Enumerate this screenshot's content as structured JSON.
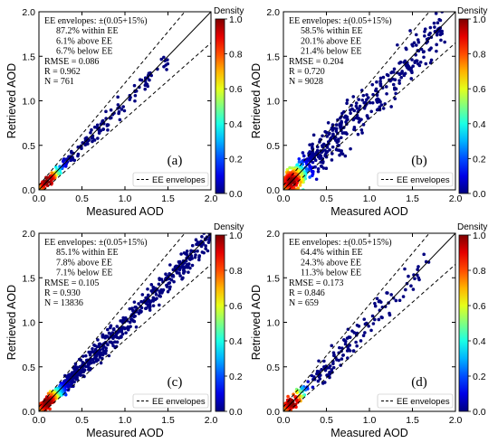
{
  "chart_data": [
    {
      "type": "scatter",
      "panel_label": "(a)",
      "xlabel": "Measured AOD",
      "ylabel": "Retrieved AOD",
      "xlim": [
        0,
        2.0
      ],
      "ylim": [
        0,
        2.0
      ],
      "xticks": [
        "0.0",
        "0.5",
        "1.0",
        "1.5",
        "2.0"
      ],
      "yticks": [
        "0.0",
        "0.5",
        "1.0",
        "1.5",
        "2.0"
      ],
      "stats": [
        "EE envelopes: ±(0.05+15%)",
        "87.2% within EE",
        "6.1% above EE",
        "6.7% below EE",
        "RMSE = 0.086",
        "R = 0.962",
        "N = 761"
      ],
      "legend": "EE envelopes",
      "colorbar": {
        "title": "Density",
        "ticks": [
          "0.0",
          "0.2",
          "0.4",
          "0.6",
          "0.8",
          "1.0"
        ],
        "range": [
          0,
          1
        ]
      },
      "spread": 0.06,
      "xmax": 1.5,
      "count": 260
    },
    {
      "type": "scatter",
      "panel_label": "(b)",
      "xlabel": "Measured AOD",
      "ylabel": "Retrieved AOD",
      "xlim": [
        0,
        2.0
      ],
      "ylim": [
        0,
        2.0
      ],
      "xticks": [
        "0.0",
        "0.5",
        "1.0",
        "1.5",
        "2.0"
      ],
      "yticks": [
        "0.0",
        "0.5",
        "1.0",
        "1.5",
        "2.0"
      ],
      "stats": [
        "EE envelopes: ±(0.05+15%)",
        "58.5% within EE",
        "20.1% above EE",
        "21.4% below EE",
        "RMSE = 0.204",
        "R = 0.720",
        "N = 9028"
      ],
      "legend": "EE envelopes",
      "colorbar": {
        "title": "Density",
        "ticks": [
          "0.0",
          "0.2",
          "0.4",
          "0.6",
          "0.8",
          "1.0"
        ],
        "range": [
          0,
          1
        ]
      },
      "spread": 0.2,
      "xmax": 1.9,
      "count": 700
    },
    {
      "type": "scatter",
      "panel_label": "(c)",
      "xlabel": "Measured AOD",
      "ylabel": "Retrieved AOD",
      "xlim": [
        0,
        2.0
      ],
      "ylim": [
        0,
        2.0
      ],
      "xticks": [
        "0.0",
        "0.5",
        "1.0",
        "1.5",
        "2.0"
      ],
      "yticks": [
        "0.0",
        "0.5",
        "1.0",
        "1.5",
        "2.0"
      ],
      "stats": [
        "EE envelopes: ±(0.05+15%)",
        "85.1% within EE",
        "7.8% above EE",
        "7.1% below EE",
        "RMSE = 0.105",
        "R = 0.930",
        "N = 13836"
      ],
      "legend": "EE envelopes",
      "colorbar": {
        "title": "Density",
        "ticks": [
          "0.0",
          "0.2",
          "0.4",
          "0.6",
          "0.8",
          "1.0"
        ],
        "range": [
          0,
          1
        ]
      },
      "spread": 0.09,
      "xmax": 2.0,
      "count": 900
    },
    {
      "type": "scatter",
      "panel_label": "(d)",
      "xlabel": "Measured AOD",
      "ylabel": "Retrieved AOD",
      "xlim": [
        0,
        2.0
      ],
      "ylim": [
        0,
        2.0
      ],
      "xticks": [
        "0.0",
        "0.5",
        "1.0",
        "1.5",
        "2.0"
      ],
      "yticks": [
        "0.0",
        "0.5",
        "1.0",
        "1.5",
        "2.0"
      ],
      "stats": [
        "EE envelopes: ±(0.05+15%)",
        "64.4% within EE",
        "24.3% above EE",
        "11.3% below EE",
        "RMSE = 0.173",
        "R = 0.846",
        "N = 659"
      ],
      "legend": "EE envelopes",
      "colorbar": {
        "title": "Density",
        "ticks": [
          "0.0",
          "0.2",
          "0.4",
          "0.6",
          "0.8",
          "1.0"
        ],
        "range": [
          0,
          1
        ]
      },
      "spread": 0.13,
      "xmax": 1.7,
      "count": 260
    }
  ]
}
